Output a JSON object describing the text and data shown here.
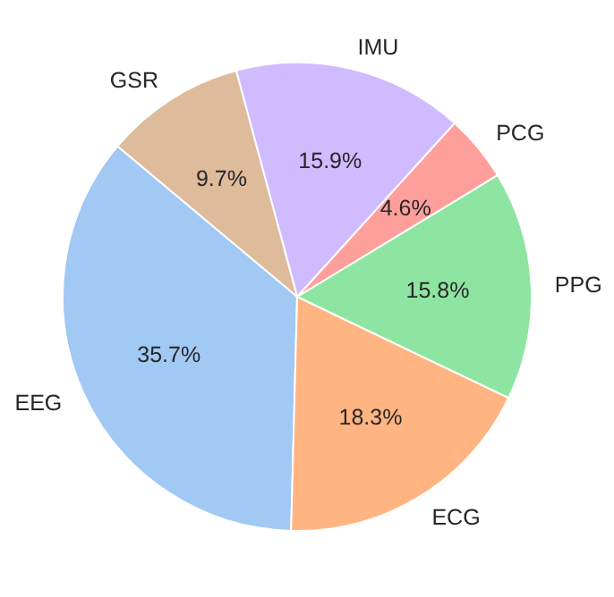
{
  "chart_data": {
    "type": "pie",
    "categories": [
      "EEG",
      "ECG",
      "PPG",
      "PCG",
      "IMU",
      "GSR"
    ],
    "values": [
      35.7,
      18.3,
      15.8,
      4.6,
      15.9,
      9.7
    ],
    "colors": [
      "#a1c9f4",
      "#ffb482",
      "#8de5a1",
      "#ff9f9b",
      "#d0bbff",
      "#debb9b"
    ],
    "value_labels": [
      "35.7%",
      "18.3%",
      "15.8%",
      "4.6%",
      "15.9%",
      "9.7%"
    ]
  }
}
